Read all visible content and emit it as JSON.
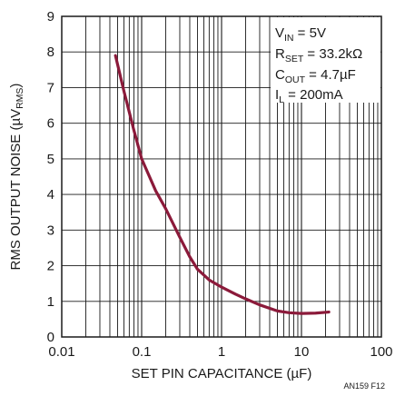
{
  "chart_data": {
    "type": "line",
    "xscale": "log",
    "xlabel": "SET PIN CAPACITANCE (µF)",
    "ylabel_main": "RMS OUTPUT NOISE (µV",
    "ylabel_sub": "RMS",
    "ylabel_end": ")",
    "xlim": [
      0.01,
      100
    ],
    "ylim": [
      0,
      9
    ],
    "x_ticks": [
      0.01,
      0.1,
      1,
      10,
      100
    ],
    "x_tick_labels": [
      "0.01",
      "0.1",
      "1",
      "10",
      "100"
    ],
    "y_ticks": [
      0,
      1,
      2,
      3,
      4,
      5,
      6,
      7,
      8,
      9
    ],
    "y_tick_labels": [
      "0",
      "1",
      "2",
      "3",
      "4",
      "5",
      "6",
      "7",
      "8",
      "9"
    ],
    "grid": true,
    "series_color": "#8b1a3a",
    "series": [
      {
        "x": [
          0.047,
          0.06,
          0.08,
          0.1,
          0.15,
          0.2,
          0.3,
          0.4,
          0.5,
          0.7,
          1,
          1.5,
          2,
          3,
          5,
          7,
          10,
          15,
          22
        ],
        "y": [
          7.9,
          6.9,
          5.8,
          5.0,
          4.1,
          3.6,
          2.8,
          2.25,
          1.9,
          1.6,
          1.4,
          1.2,
          1.07,
          0.9,
          0.73,
          0.68,
          0.66,
          0.67,
          0.7
        ]
      }
    ],
    "annotation": {
      "line1": {
        "main": "V",
        "sub": "IN",
        "rest": " = 5V"
      },
      "line2": {
        "main": "R",
        "sub": "SET",
        "rest": " = 33.2kΩ"
      },
      "line3": {
        "main": "C",
        "sub": "OUT",
        "rest": " = 4.7µF"
      },
      "line4": {
        "main": "I",
        "sub": "L",
        "rest": " = 200mA"
      }
    },
    "figure_id": "AN159 F12"
  }
}
